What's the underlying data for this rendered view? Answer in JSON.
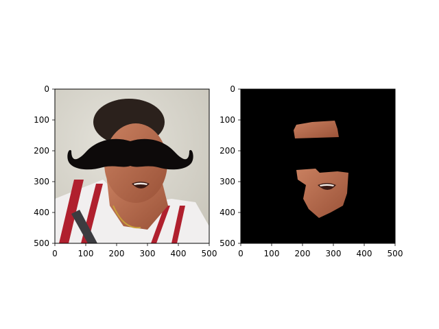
{
  "chart_data": [
    {
      "type": "image",
      "title": "",
      "xlabel": "",
      "ylabel": "",
      "xlim": [
        0,
        500
      ],
      "ylim": [
        500,
        0
      ],
      "xticks": [
        0,
        100,
        200,
        300,
        400,
        500
      ],
      "yticks": [
        0,
        100,
        200,
        300,
        400,
        500
      ],
      "grid": false,
      "content": "photo of a person with a drawn black mustache overlay covering the eyes"
    },
    {
      "type": "image",
      "title": "",
      "xlabel": "",
      "ylabel": "",
      "xlim": [
        0,
        500
      ],
      "ylim": [
        500,
        0
      ],
      "xticks": [
        0,
        100,
        200,
        300,
        400,
        500
      ],
      "yticks": [
        0,
        100,
        200,
        300,
        400,
        500
      ],
      "grid": false,
      "content": "black background with only segmented facial skin region visible"
    }
  ],
  "colors": {
    "axis": "#000000",
    "mask_background": "#000000",
    "mustache": "#0d0a0a",
    "skin": "#b86a4a",
    "photo_background": "#d9d6cc",
    "shirt": "#f2f0f0",
    "shirt_stripe": "#b0202e"
  }
}
